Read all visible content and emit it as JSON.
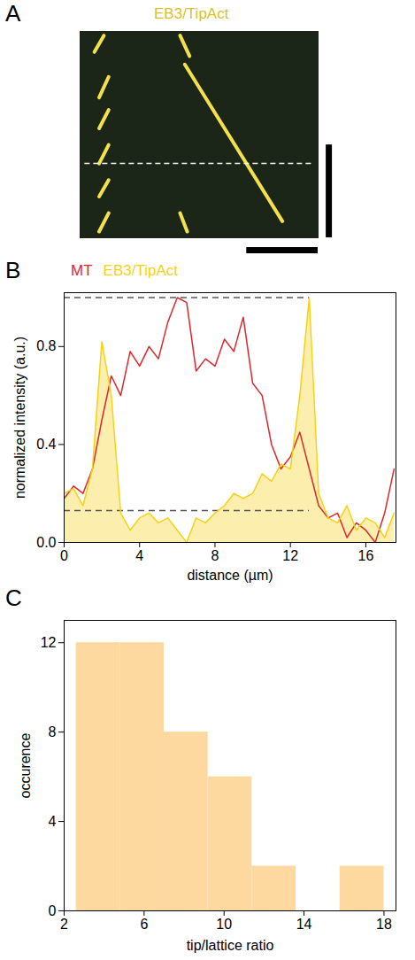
{
  "chart_data": [
    {
      "type": "kymograph",
      "panel_label": "A",
      "title": "EB3/TipAct",
      "color": "#f2e14a",
      "tracks": [
        [
          [
            0.1,
            0.02
          ],
          [
            0.06,
            0.1
          ]
        ],
        [
          [
            0.12,
            0.22
          ],
          [
            0.08,
            0.32
          ]
        ],
        [
          [
            0.12,
            0.38
          ],
          [
            0.08,
            0.47
          ]
        ],
        [
          [
            0.12,
            0.55
          ],
          [
            0.08,
            0.64
          ]
        ],
        [
          [
            0.12,
            0.72
          ],
          [
            0.08,
            0.8
          ]
        ],
        [
          [
            0.12,
            0.88
          ],
          [
            0.08,
            0.97
          ]
        ],
        [
          [
            0.42,
            0.02
          ],
          [
            0.46,
            0.12
          ]
        ],
        [
          [
            0.44,
            0.16
          ],
          [
            0.85,
            0.92
          ]
        ],
        [
          [
            0.42,
            0.88
          ],
          [
            0.45,
            0.97
          ]
        ]
      ],
      "dashed_line": 0.64
    },
    {
      "type": "line",
      "panel_label": "B",
      "xlabel": "distance (µm)",
      "ylabel": "normalized intensity (a.u.)",
      "x": [
        0,
        0.5,
        1,
        1.5,
        2,
        2.5,
        3,
        3.5,
        4,
        4.5,
        5,
        5.5,
        6,
        6.5,
        7,
        7.5,
        8,
        8.5,
        9,
        9.5,
        10,
        10.5,
        11,
        11.5,
        12,
        12.5,
        13,
        13.5,
        14,
        14.5,
        15,
        15.5,
        16,
        16.5,
        17,
        17.5
      ],
      "series": [
        {
          "name": "MT",
          "color": "#e0262b",
          "type": "line",
          "values": [
            0.18,
            0.23,
            0.2,
            0.3,
            0.5,
            0.68,
            0.6,
            0.78,
            0.72,
            0.8,
            0.75,
            0.9,
            1.0,
            0.98,
            0.7,
            0.75,
            0.72,
            0.83,
            0.78,
            0.92,
            0.65,
            0.6,
            0.4,
            0.3,
            0.35,
            0.45,
            0.3,
            0.15,
            0.1,
            0.12,
            0.02,
            0.08,
            0.05,
            0.0,
            0.12,
            0.3
          ]
        },
        {
          "name": "EB3/TipAct",
          "color": "#f7d117",
          "type": "area",
          "values": [
            0.2,
            0.22,
            0.15,
            0.3,
            0.82,
            0.6,
            0.12,
            0.05,
            0.1,
            0.12,
            0.08,
            0.1,
            0.05,
            0.0,
            0.1,
            0.08,
            0.12,
            0.15,
            0.2,
            0.18,
            0.2,
            0.28,
            0.25,
            0.32,
            0.3,
            0.6,
            1.0,
            0.2,
            0.1,
            0.08,
            0.15,
            0.05,
            0.1,
            0.08,
            0.02,
            0.12
          ]
        }
      ],
      "reference_lines": [
        {
          "y": 1.0,
          "x": [
            0,
            13
          ]
        },
        {
          "y": 0.13,
          "x": [
            0,
            13
          ]
        }
      ],
      "xlim": [
        0,
        17.6
      ],
      "ylim": [
        0,
        1.02
      ],
      "xticks": [
        0,
        4,
        8,
        12,
        16
      ],
      "yticks": [
        {
          "value": 0,
          "label": "0.0"
        },
        0.4,
        0.8
      ],
      "legend": "top"
    },
    {
      "type": "histogram",
      "panel_label": "C",
      "xlabel": "tip/lattice ratio",
      "ylabel": "occurence",
      "bins": [
        2.6,
        4.8,
        7.0,
        9.2,
        11.4,
        13.6,
        15.8,
        18.0
      ],
      "counts": [
        12,
        12,
        8,
        6,
        2,
        0,
        2
      ],
      "color": "#fdd9a0",
      "xlim": [
        2,
        18.6
      ],
      "ylim": [
        0,
        13
      ],
      "xticks": [
        2,
        6,
        10,
        14,
        18
      ],
      "yticks": [
        0,
        4,
        8,
        12
      ]
    }
  ]
}
